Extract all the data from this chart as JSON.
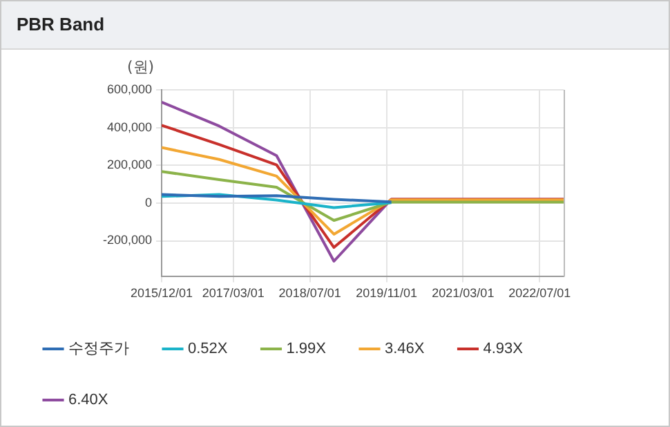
{
  "chart_data": {
    "type": "line",
    "title": "PBR Band",
    "ylabel": "(원)",
    "x": [
      "2015-12-01",
      "2016-12-01",
      "2017-12-01",
      "2018-12-01",
      "2019-12-01",
      "2020-12-01",
      "2021-12-01",
      "2022-12-01"
    ],
    "series": [
      {
        "name": "수정주가",
        "color": "#2e6db4",
        "values": [
          45000,
          35000,
          39000,
          20000,
          6000,
          null,
          null,
          null
        ]
      },
      {
        "name": "0.52X",
        "color": "#1ab3c9",
        "values": [
          35000,
          45000,
          16000,
          -24000,
          2000,
          null,
          null,
          null
        ]
      },
      {
        "name": "1.99X",
        "color": "#8cb34a",
        "values": [
          167000,
          124000,
          84000,
          -92000,
          5000,
          5000,
          5000,
          5000
        ]
      },
      {
        "name": "3.46X",
        "color": "#f2a733",
        "values": [
          294000,
          231000,
          143000,
          -165000,
          17000,
          17000,
          17000,
          17000
        ]
      },
      {
        "name": "4.93X",
        "color": "#c8302b",
        "values": [
          412000,
          310000,
          202000,
          -235000,
          20000,
          20000,
          20000,
          20000
        ]
      },
      {
        "name": "6.40X",
        "color": "#8e4b9f",
        "values": [
          535000,
          408000,
          251000,
          -308000,
          20000,
          20000,
          20000,
          20000
        ]
      }
    ],
    "xlim": [
      "2015-12-01",
      "2022-12-01"
    ],
    "xticks": [
      {
        "value": "2015-12-01",
        "label": "2015/12/01"
      },
      {
        "value": "2017-03-01",
        "label": "2017/03/01"
      },
      {
        "value": "2018-07-01",
        "label": "2018/07/01"
      },
      {
        "value": "2019-11-01",
        "label": "2019/11/01"
      },
      {
        "value": "2021-03-01",
        "label": "2021/03/01"
      },
      {
        "value": "2022-07-01",
        "label": "2022/07/01"
      }
    ],
    "ylim": [
      -390000,
      600000
    ],
    "yticks": [
      {
        "value": -200000,
        "label": "-200,000"
      },
      {
        "value": 0,
        "label": "0"
      },
      {
        "value": 200000,
        "label": "200,000"
      },
      {
        "value": 400000,
        "label": "400,000"
      },
      {
        "value": 600000,
        "label": "600,000"
      }
    ],
    "grid": true,
    "legend": "bottom",
    "marker": "none",
    "line_style": "solid"
  }
}
